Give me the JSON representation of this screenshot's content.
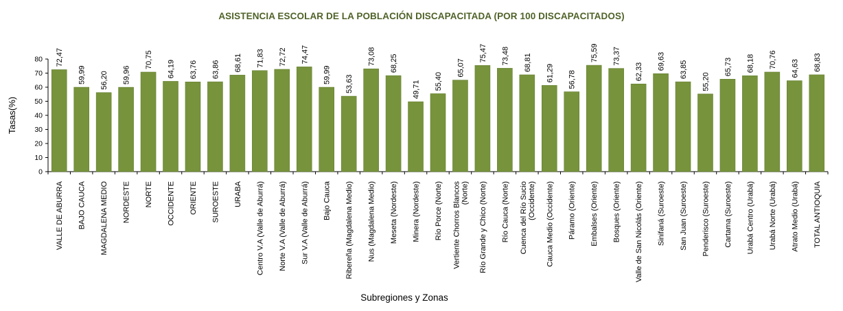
{
  "colors": {
    "bar": "#77933c",
    "bar_edge": "#5f7a2d",
    "title": "#4f6228",
    "axis": "#000000",
    "grid": "#000000"
  },
  "chart_data": {
    "type": "bar",
    "title": "ASISTENCIA ESCOLAR DE LA POBLACIÓN DISCAPACITADA (POR 100 DISCAPACITADOS)",
    "xlabel": "Subregiones y Zonas",
    "ylabel": "Tasas(%)",
    "ylim": [
      0,
      80
    ],
    "yticks": [
      0,
      10,
      20,
      30,
      40,
      50,
      60,
      70,
      80
    ],
    "grid": false,
    "legend": "none",
    "categories": [
      "VALLE DE ABURRA",
      "BAJO CAUCA",
      "MAGDALENA MEDIO",
      "NORDESTE",
      "NORTE",
      "OCCIDENTE",
      "ORIENTE",
      "SUROESTE",
      "URABA",
      "Centro V.A (Valle de Aburrá)",
      "Norte V.A (Valle de Aburrá)",
      "Sur V.A (Valle de Aburrá)",
      "Bajo Cauca",
      "Ribereña (Magdalena Medio)",
      "Nus (Magdalena Medio)",
      "Meseta (Nordeste)",
      "Minera (Nordeste)",
      "Río Porce (Norte)",
      "Vertiente Chorros Blancos (Norte)",
      "Río Grande y Chico (Norte)",
      "Río Cauca (Norte)",
      "Cuenca del Río Sucio (Occidente)",
      "Cauca Medio (Occidente)",
      "Páramo (Oriente)",
      "Embalses (Oriente)",
      "Bosques (Oriente)",
      "Valle de San Nicolás (Oriente)",
      "Sinifaná (Suroeste)",
      "San Juan (Suroeste)",
      "Penderisco (Suroeste)",
      "Cartama (Suroeste)",
      "Urabá Centro (Urabá)",
      "Urabá Norte (Urabá)",
      "Atrato Medio (Urabá)",
      "TOTAL ANTIOQUIA"
    ],
    "label_lines": [
      [
        "VALLE DE ABURRA"
      ],
      [
        "BAJO CAUCA"
      ],
      [
        "MAGDALENA MEDIO"
      ],
      [
        "NORDESTE"
      ],
      [
        "NORTE"
      ],
      [
        "OCCIDENTE"
      ],
      [
        "ORIENTE"
      ],
      [
        "SUROESTE"
      ],
      [
        "URABA"
      ],
      [
        "Centro V.A (Valle de Aburrá)"
      ],
      [
        "Norte V.A (Valle de Aburrá)"
      ],
      [
        "Sur V.A (Valle de Aburrá)"
      ],
      [
        "Bajo Cauca"
      ],
      [
        "Ribereña  (Magdalena Medio)"
      ],
      [
        "Nus  (Magdalena Medio)"
      ],
      [
        "Meseta  (Nordeste)"
      ],
      [
        "Minera  (Nordeste)"
      ],
      [
        "Río Porce   (Norte)"
      ],
      [
        "Vertiente Chorros Blancos",
        "(Norte)"
      ],
      [
        "Río Grande y Chico  (Norte)"
      ],
      [
        "Río Cauca  (Norte)"
      ],
      [
        "Cuenca del Río Sucio",
        "(Occidente)"
      ],
      [
        "Cauca Medio  (Occidente)"
      ],
      [
        "Páramo  (Oriente)"
      ],
      [
        "Embalses  (Oriente)"
      ],
      [
        "Bosques  (Oriente)"
      ],
      [
        "Valle de San Nicolás  (Oriente)"
      ],
      [
        "Sinifaná  (Suroeste)"
      ],
      [
        "San Juan  (Suroeste)"
      ],
      [
        "Penderisco  (Suroeste)"
      ],
      [
        "Cartama  (Suroeste)"
      ],
      [
        "Urabá Centro  (Urabá)"
      ],
      [
        "Urabá Norte  (Urabá)"
      ],
      [
        "Atrato Medio  (Urabá)"
      ],
      [
        "TOTAL ANTIOQUIA"
      ]
    ],
    "values": [
      72.47,
      59.99,
      56.2,
      59.96,
      70.75,
      64.19,
      63.76,
      63.86,
      68.61,
      71.83,
      72.72,
      74.47,
      59.99,
      53.63,
      73.08,
      68.25,
      49.71,
      55.4,
      65.07,
      75.47,
      73.48,
      68.81,
      61.29,
      56.78,
      75.59,
      73.37,
      62.33,
      69.63,
      63.85,
      55.2,
      65.73,
      68.18,
      70.76,
      64.63,
      68.83
    ],
    "value_labels": [
      "72,47",
      "59,99",
      "56,20",
      "59,96",
      "70,75",
      "64,19",
      "63,76",
      "63,86",
      "68,61",
      "71,83",
      "72,72",
      "74,47",
      "59,99",
      "53,63",
      "73,08",
      "68,25",
      "49,71",
      "55,40",
      "65,07",
      "75,47",
      "73,48",
      "68,81",
      "61,29",
      "56,78",
      "75,59",
      "73,37",
      "62,33",
      "69,63",
      "63,85",
      "55,20",
      "65,73",
      "68,18",
      "70,76",
      "64,63",
      "68,83"
    ]
  }
}
